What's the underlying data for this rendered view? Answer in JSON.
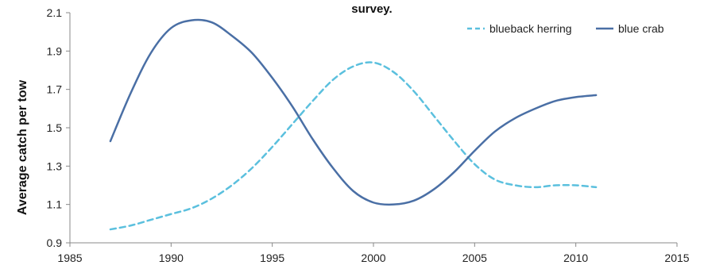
{
  "chart_data": {
    "type": "line",
    "title": "survey.",
    "xlabel": "",
    "ylabel": "Average catch per tow",
    "xlim": [
      1985,
      2015
    ],
    "ylim": [
      0.9,
      2.1
    ],
    "x_ticks": [
      1985,
      1990,
      1995,
      2000,
      2005,
      2010,
      2015
    ],
    "y_ticks": [
      "0.9",
      "1.1",
      "1.3",
      "1.5",
      "1.7",
      "1.9",
      "2.1"
    ],
    "grid": false,
    "legend_position": "top-right",
    "series": [
      {
        "name": "blueback herring",
        "style": "dashed",
        "color": "#5bc0de",
        "x": [
          1987,
          1988,
          1989,
          1990,
          1991,
          1992,
          1993,
          1994,
          1995,
          1996,
          1997,
          1998,
          1999,
          2000,
          2001,
          2002,
          2003,
          2004,
          2005,
          2006,
          2007,
          2008,
          2009,
          2010,
          2011
        ],
        "y": [
          0.97,
          0.99,
          1.02,
          1.05,
          1.08,
          1.13,
          1.2,
          1.29,
          1.4,
          1.52,
          1.64,
          1.75,
          1.82,
          1.84,
          1.79,
          1.69,
          1.56,
          1.43,
          1.31,
          1.23,
          1.2,
          1.19,
          1.2,
          1.2,
          1.19
        ]
      },
      {
        "name": "blue crab",
        "style": "solid",
        "color": "#4a6fa5",
        "x": [
          1987,
          1988,
          1989,
          1990,
          1991,
          1992,
          1993,
          1994,
          1995,
          1996,
          1997,
          1998,
          1999,
          2000,
          2001,
          2002,
          2003,
          2004,
          2005,
          2006,
          2007,
          2008,
          2009,
          2010,
          2011
        ],
        "y": [
          1.43,
          1.68,
          1.89,
          2.02,
          2.06,
          2.05,
          1.98,
          1.89,
          1.76,
          1.61,
          1.44,
          1.29,
          1.17,
          1.11,
          1.1,
          1.12,
          1.18,
          1.27,
          1.38,
          1.48,
          1.55,
          1.6,
          1.64,
          1.66,
          1.67
        ]
      }
    ]
  }
}
